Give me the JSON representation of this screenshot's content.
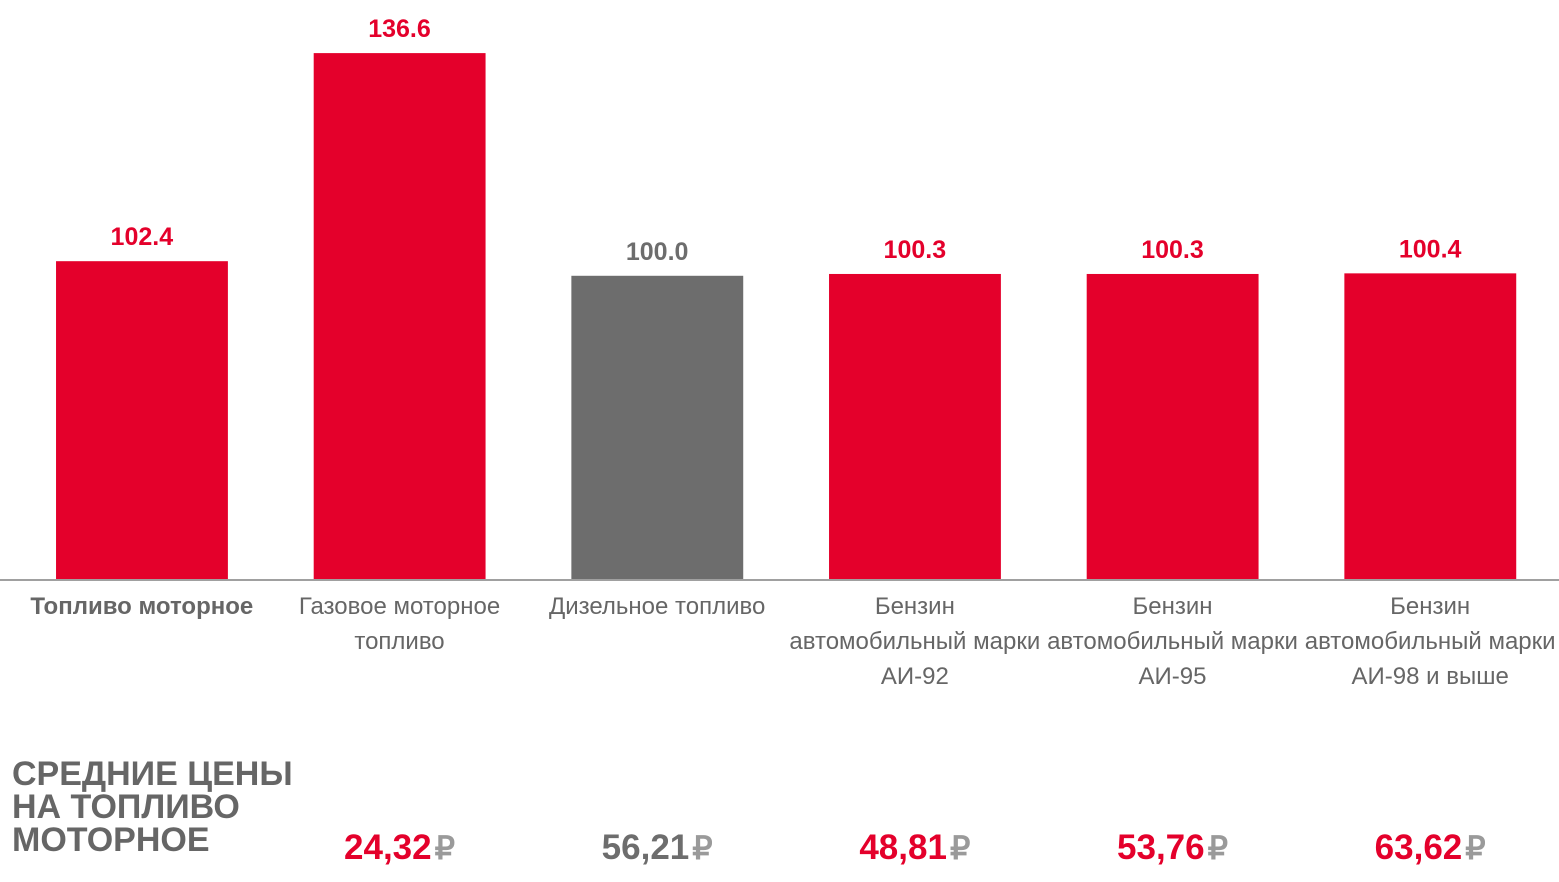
{
  "chart_data": {
    "type": "bar",
    "categories": [
      "Топливо моторное",
      "Газовое моторное топливо",
      "Дизельное топливо",
      "Бензин автомобильный марки АИ-92",
      "Бензин автомобильный марки АИ-95",
      "Бензин автомобильный марки АИ-98 и выше"
    ],
    "values": [
      102.4,
      136.6,
      100.0,
      100.3,
      100.3,
      100.4
    ],
    "value_labels": [
      "102.4",
      "136.6",
      "100.0",
      "100.3",
      "100.3",
      "100.4"
    ],
    "colors": [
      "#e4002b",
      "#e4002b",
      "#6d6d6d",
      "#e4002b",
      "#e4002b",
      "#e4002b"
    ],
    "ylim": [
      50,
      145
    ],
    "prices": {
      "title": "СРЕДНИЕ ЦЕНЫ НА ТОПЛИВО МОТОРНОЕ",
      "values": [
        24.32,
        56.21,
        48.81,
        53.76,
        63.62
      ],
      "value_labels": [
        "24,32",
        "56,21",
        "48,81",
        "53,76",
        "63,62"
      ],
      "colors": [
        "#e4002b",
        "#6d6d6d",
        "#e4002b",
        "#e4002b",
        "#e4002b"
      ],
      "currency": "₽"
    }
  }
}
